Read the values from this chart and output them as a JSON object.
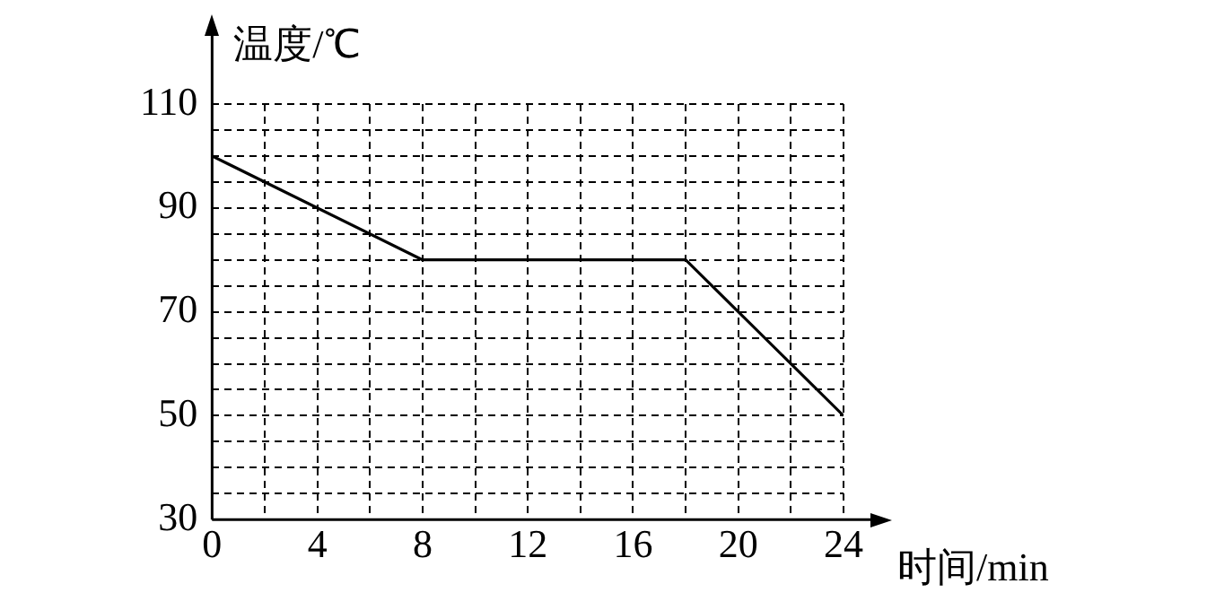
{
  "chart_data": {
    "type": "line",
    "xlabel": "时间/min",
    "ylabel": "温度/℃",
    "x": [
      0,
      8,
      18,
      24
    ],
    "series": [
      {
        "color": "#000000",
        "values": [
          100,
          80,
          80,
          50
        ]
      }
    ],
    "xlim": [
      0,
      24
    ],
    "xticks": [
      0,
      {
        "value": 2,
        "label": null
      },
      4,
      {
        "value": 6,
        "label": null
      },
      8,
      {
        "value": 10,
        "label": null
      },
      12,
      {
        "value": 14,
        "label": null
      },
      16,
      {
        "value": 18,
        "label": null
      },
      20,
      {
        "value": 22,
        "label": null
      },
      24
    ],
    "ylim": [
      30,
      110
    ],
    "yticks": [
      30,
      {
        "value": 35,
        "label": null
      },
      {
        "value": 40,
        "label": null
      },
      {
        "value": 45,
        "label": null
      },
      50,
      {
        "value": 55,
        "label": null
      },
      {
        "value": 60,
        "label": null
      },
      {
        "value": 65,
        "label": null
      },
      70,
      {
        "value": 75,
        "label": null
      },
      {
        "value": 80,
        "label": null
      },
      {
        "value": 85,
        "label": null
      },
      90,
      {
        "value": 95,
        "label": null
      },
      {
        "value": 100,
        "label": null
      },
      {
        "value": 105,
        "label": null
      },
      110
    ],
    "grid": true,
    "legend": false,
    "marker": "none",
    "line_style": "solid"
  }
}
